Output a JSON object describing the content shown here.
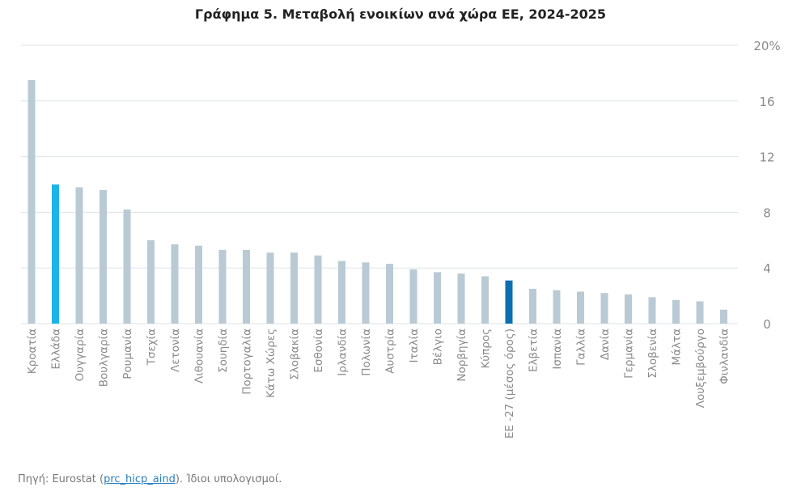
{
  "chart_data": {
    "type": "bar",
    "title": "Γράφημα 5. Μεταβολή ενοικίων ανά χώρα ΕΕ, 2024-2025",
    "categories": [
      "Κροατία",
      "Ελλάδα",
      "Ουγγαρία",
      "Βουλγαρία",
      "Ρουμανία",
      "Τσεχία",
      "Λετονία",
      "Λιθουανία",
      "Σουηδία",
      "Πορτογαλία",
      "Κάτω Χώρες",
      "Σλοβακία",
      "Εσθονία",
      "Ιρλανδία",
      "Πολωνία",
      "Αυστρία",
      "Ιταλία",
      "Βέλγιο",
      "Νορβηγία",
      "Κύπρος",
      "ΕΕ -27 (μέσος όρος)",
      "Ελβετία",
      "Ισπανία",
      "Γαλλία",
      "Δανία",
      "Γερμανία",
      "Σλοβενία",
      "Μάλτα",
      "Λουξεμβούργο",
      "Φινλανδία"
    ],
    "values": [
      17.5,
      10.0,
      9.8,
      9.6,
      8.2,
      6.0,
      5.7,
      5.6,
      5.3,
      5.3,
      5.1,
      5.1,
      4.9,
      4.5,
      4.4,
      4.3,
      3.9,
      3.7,
      3.6,
      3.4,
      3.1,
      2.5,
      2.4,
      2.3,
      2.2,
      2.1,
      1.9,
      1.7,
      1.6,
      1.0
    ],
    "ylim": [
      0,
      20
    ],
    "yticks": [
      "0",
      "4",
      "8",
      "12",
      "16",
      "20%"
    ],
    "ytick_values": [
      0,
      4,
      8,
      12,
      16,
      20
    ],
    "y_axis_side": "right",
    "grid": true,
    "colors": {
      "default": "#b9cad4",
      "highlight_greece": "#1cb4e8",
      "highlight_eu": "#0b6fb0",
      "grid": "#dde3e7",
      "text": "#8a8a8a"
    },
    "highlights": {
      "Ελλάδα": "highlight_greece",
      "ΕΕ -27 (μέσος όρος)": "highlight_eu"
    }
  },
  "footer": {
    "prefix": "Πηγή: Eurostat (",
    "link": "prc_hicp_aind",
    "suffix": "). Ίδιοι υπολογισμοί."
  }
}
